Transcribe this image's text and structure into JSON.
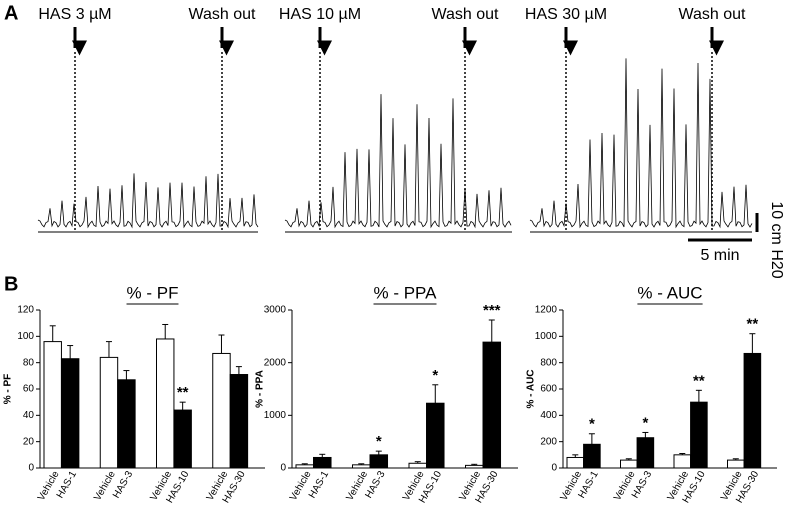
{
  "panel_a": {
    "label": "A",
    "traces": [
      {
        "drug": "HAS 3 µM",
        "wash": "Wash out"
      },
      {
        "drug": "HAS 10 µM",
        "wash": "Wash out"
      },
      {
        "drug": "HAS 30 µM",
        "wash": "Wash out"
      }
    ],
    "scale_y": "10 cm H20",
    "scale_x": "5 min"
  },
  "panel_b_label": "B",
  "chart_data": [
    {
      "type": "bar",
      "title": "% - PF",
      "y_label": "% - PF",
      "categories": [
        "Vehicle",
        "HAS-1",
        "Vehicle",
        "HAS-3",
        "Vehicle",
        "HAS-10",
        "Vehicle",
        "HAS-30"
      ],
      "values": [
        96,
        83,
        84,
        67,
        98,
        44,
        87,
        71
      ],
      "errors": [
        12,
        10,
        12,
        7,
        11,
        6,
        14,
        6
      ],
      "colors": [
        "#ffffff",
        "#000000",
        "#ffffff",
        "#000000",
        "#ffffff",
        "#000000",
        "#ffffff",
        "#000000"
      ],
      "annotations": [
        null,
        null,
        null,
        null,
        null,
        "**",
        null,
        null
      ],
      "ylim": [
        0,
        120
      ],
      "yticks": [
        0,
        20,
        40,
        60,
        80,
        100,
        120
      ]
    },
    {
      "type": "bar",
      "title": "% - PPA",
      "y_label": "% - PPA",
      "categories": [
        "Vehicle",
        "HAS-1",
        "Vehicle",
        "HAS-3",
        "Vehicle",
        "HAS-10",
        "Vehicle",
        "HAS-30"
      ],
      "values": [
        60,
        200,
        60,
        250,
        90,
        1230,
        50,
        2390
      ],
      "errors": [
        20,
        60,
        20,
        70,
        30,
        350,
        20,
        420
      ],
      "colors": [
        "#ffffff",
        "#000000",
        "#ffffff",
        "#000000",
        "#ffffff",
        "#000000",
        "#ffffff",
        "#000000"
      ],
      "annotations": [
        null,
        null,
        null,
        "*",
        null,
        "*",
        null,
        "***"
      ],
      "ylim": [
        0,
        3000
      ],
      "yticks": [
        0,
        1000,
        2000,
        3000
      ]
    },
    {
      "type": "bar",
      "title": "% - AUC",
      "y_label": "% - AUC",
      "categories": [
        "Vehicle",
        "HAS-1",
        "Vehicle",
        "HAS-3",
        "Vehicle",
        "HAS-10",
        "Vehicle",
        "HAS-30"
      ],
      "values": [
        80,
        180,
        60,
        230,
        100,
        500,
        60,
        870
      ],
      "errors": [
        20,
        80,
        10,
        40,
        10,
        90,
        10,
        150
      ],
      "colors": [
        "#ffffff",
        "#000000",
        "#ffffff",
        "#000000",
        "#ffffff",
        "#000000",
        "#ffffff",
        "#000000"
      ],
      "annotations": [
        null,
        "*",
        null,
        "*",
        null,
        "**",
        null,
        "**"
      ],
      "ylim": [
        0,
        1200
      ],
      "yticks": [
        0,
        200,
        400,
        600,
        800,
        1000,
        1200
      ]
    }
  ]
}
